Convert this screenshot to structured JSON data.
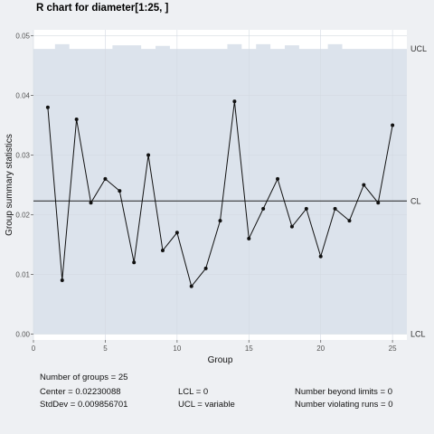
{
  "chart_data": {
    "type": "line",
    "title": "R chart for diameter[1:25, ]",
    "xlabel": "Group",
    "ylabel": "Group summary statistics",
    "xlim": [
      0,
      26
    ],
    "ylim": [
      -0.001,
      0.051
    ],
    "xticks": [
      0,
      5,
      10,
      15,
      20,
      25
    ],
    "xtick_labels": [
      "0",
      "5",
      "10",
      "15",
      "20",
      "25"
    ],
    "yticks": [
      0.0,
      0.01,
      0.02,
      0.03,
      0.04,
      0.05
    ],
    "ytick_labels": [
      "0.00",
      "0.01",
      "0.02",
      "0.03",
      "0.04",
      "0.05"
    ],
    "grid": true,
    "x": [
      1,
      2,
      3,
      4,
      5,
      6,
      7,
      8,
      9,
      10,
      11,
      12,
      13,
      14,
      15,
      16,
      17,
      18,
      19,
      20,
      21,
      22,
      23,
      24,
      25
    ],
    "values": [
      0.038,
      0.009,
      0.036,
      0.022,
      0.026,
      0.024,
      0.012,
      0.03,
      0.014,
      0.017,
      0.008,
      0.011,
      0.019,
      0.039,
      0.016,
      0.021,
      0.026,
      0.018,
      0.021,
      0.013,
      0.021,
      0.019,
      0.025,
      0.022,
      0.035
    ],
    "center": 0.02230088,
    "lcl": 0,
    "ucl": [
      0.0478,
      0.0486,
      0.0478,
      0.0478,
      0.0478,
      0.0484,
      0.0484,
      0.0478,
      0.0483,
      0.0478,
      0.0478,
      0.0478,
      0.0478,
      0.0486,
      0.0478,
      0.0486,
      0.0478,
      0.0484,
      0.0478,
      0.0478,
      0.0486,
      0.0478,
      0.0478,
      0.0478,
      0.0478
    ],
    "limit_labels": {
      "ucl": "UCL",
      "cl": "CL",
      "lcl": "LCL"
    },
    "colors": {
      "limits_band": "#dce3ec",
      "panel": "#ffffff",
      "line": "#111111",
      "grid": "#d4dae2",
      "limit_line": "#7a7a7a"
    }
  },
  "stats": {
    "groups": "Number of groups = 25",
    "center": "Center = 0.02230088",
    "stddev": "StdDev = 0.009856701",
    "lcl": "LCL = 0",
    "ucl": "UCL = variable",
    "beyond": "Number beyond limits = 0",
    "violating": "Number violating runs = 0"
  }
}
